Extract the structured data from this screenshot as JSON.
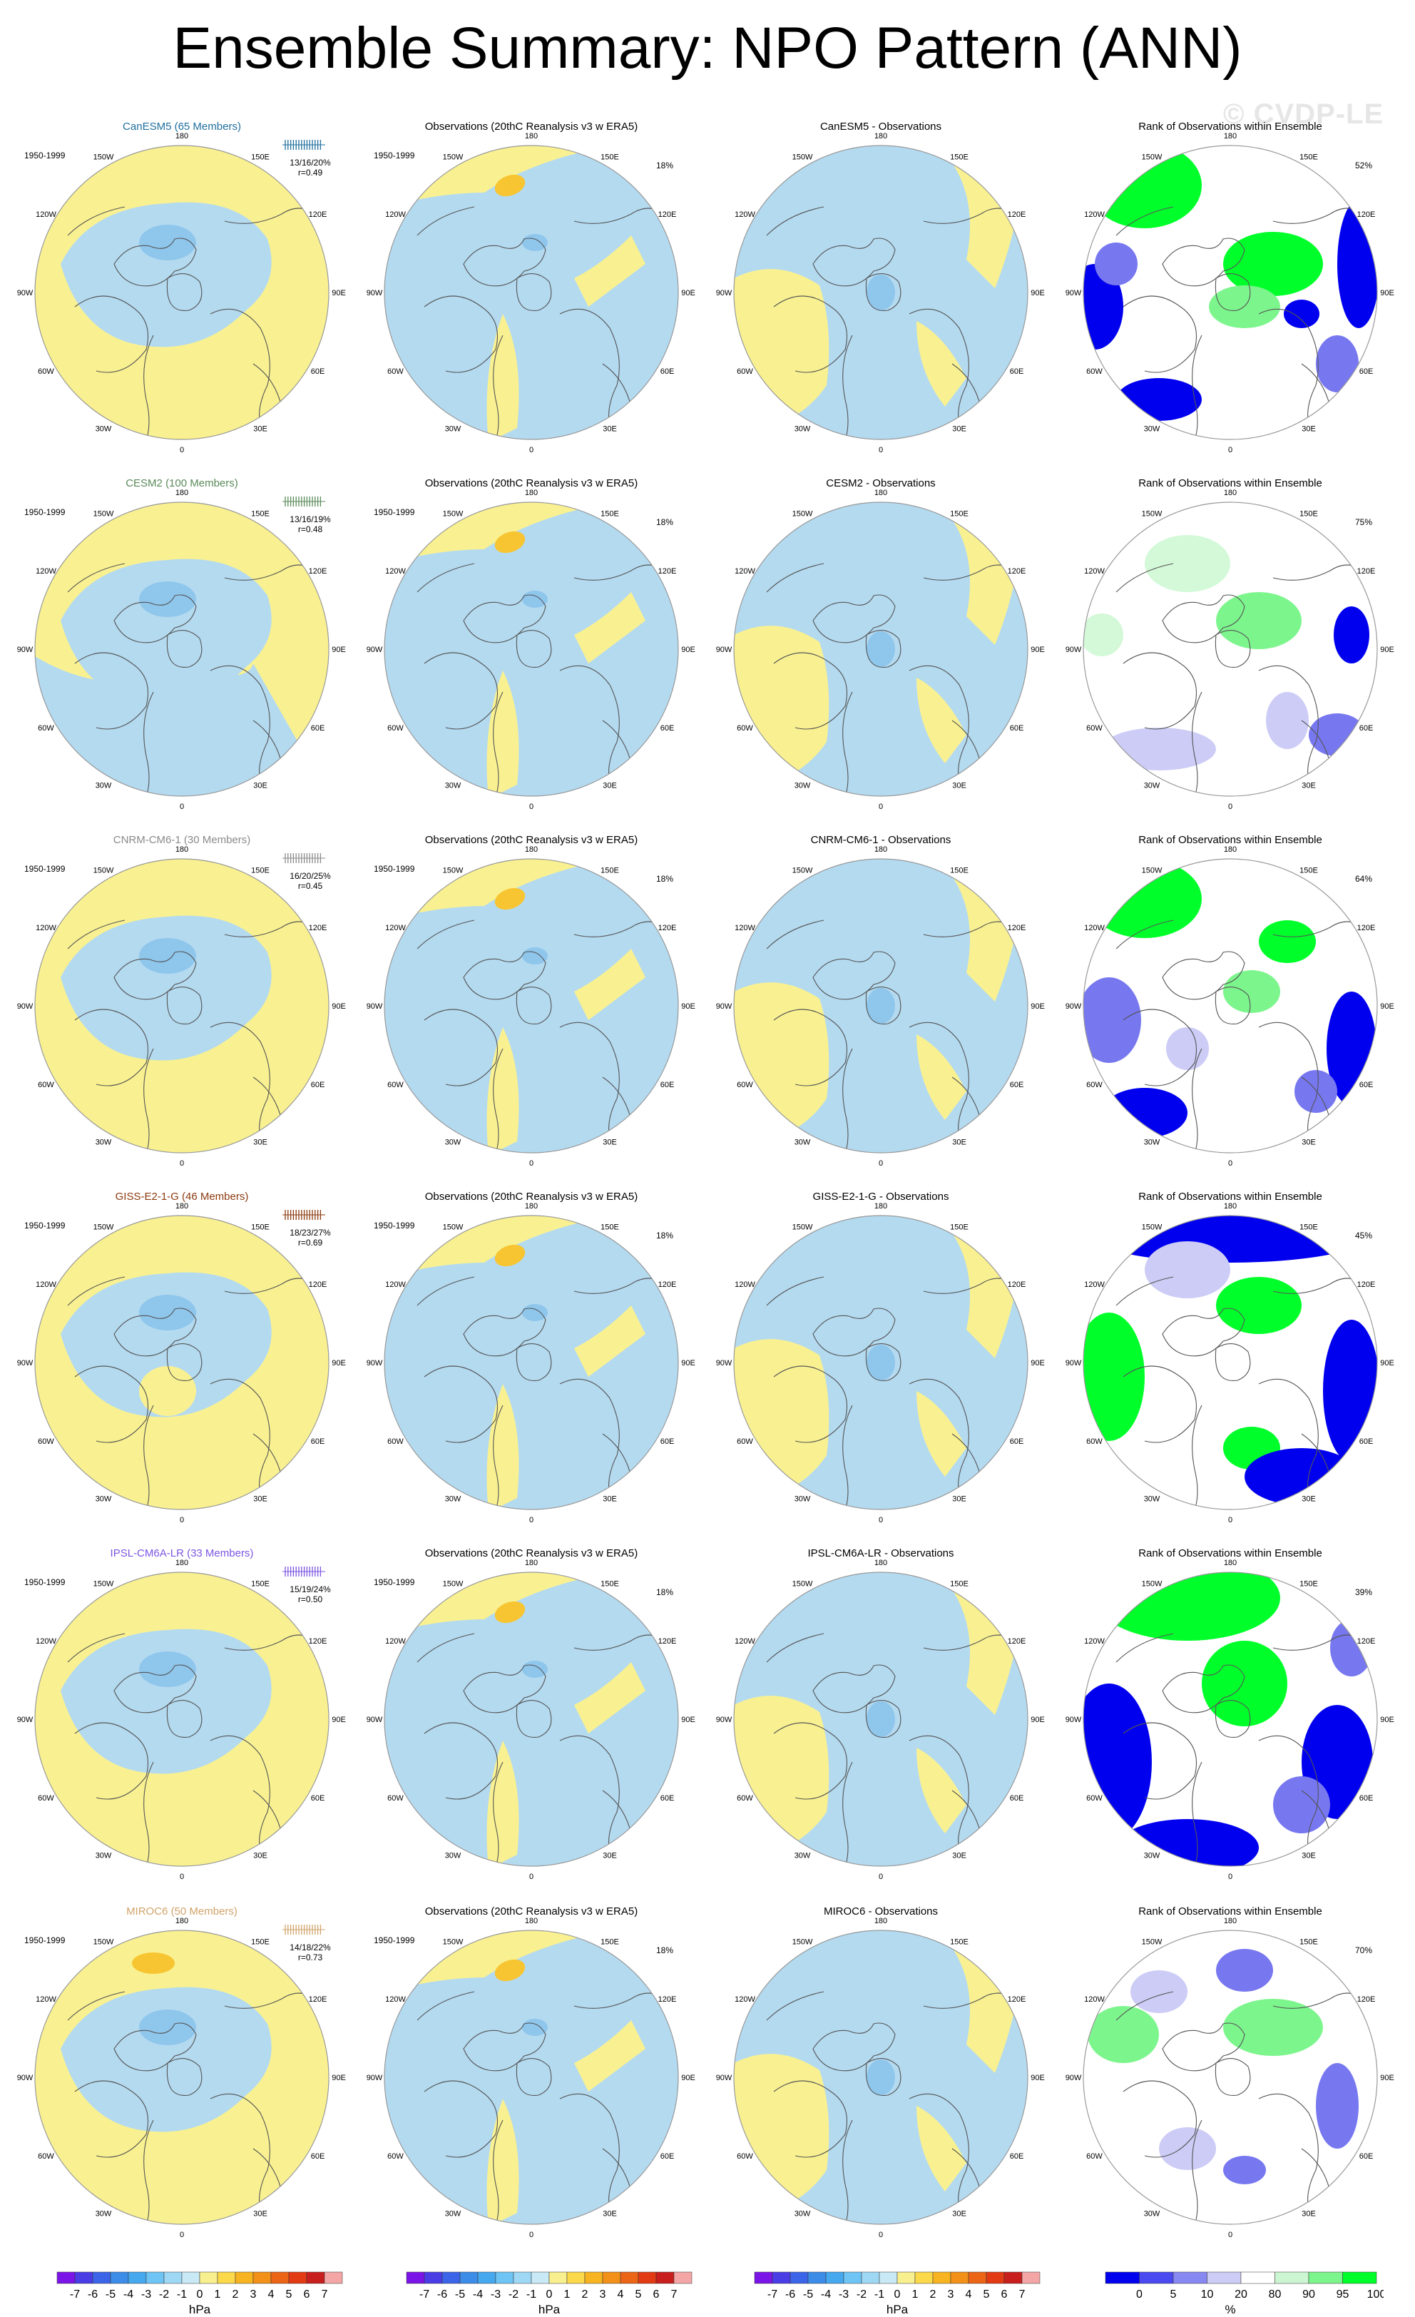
{
  "title": "Ensemble Summary: NPO Pattern (ANN)",
  "watermark": "© CVDP-LE",
  "period": "1950-1999",
  "lon_labels": [
    "180",
    "150E",
    "120E",
    "90E",
    "60E",
    "30E",
    "0",
    "30W",
    "60W",
    "90W",
    "120W",
    "150W"
  ],
  "obs_title": "Observations (20thC Reanalysis v3 w ERA5)",
  "obs_pct": "18%",
  "rank_title": "Rank of Observations within Ensemble",
  "colors": {
    "warm": "#f9f191",
    "cool": "#b4daf0",
    "cool2": "#8fc6ec",
    "orange": "#f7c531",
    "dblue": "#0000ee",
    "mblue": "#7777f0",
    "lblue": "#ccccf6",
    "green": "#00ff2a",
    "lgreen": "#7df58d",
    "pgreen": "#d3f9d8"
  },
  "rows": [
    {
      "model": "CanESM5 (65 Members)",
      "color": "#1f6f9e",
      "stat": "13/16/20%",
      "r": "r=0.49",
      "diff": "CanESM5 - Observations",
      "rank_pct": "52%"
    },
    {
      "model": "CESM2 (100 Members)",
      "color": "#5a8a5a",
      "stat": "13/16/19%",
      "r": "r=0.48",
      "diff": "CESM2 - Observations",
      "rank_pct": "75%"
    },
    {
      "model": "CNRM-CM6-1 (30 Members)",
      "color": "#8a8a8a",
      "stat": "16/20/25%",
      "r": "r=0.45",
      "diff": "CNRM-CM6-1 - Observations",
      "rank_pct": "64%"
    },
    {
      "model": "GISS-E2-1-G (46 Members)",
      "color": "#8b3a0f",
      "stat": "18/23/27%",
      "r": "r=0.69",
      "diff": "GISS-E2-1-G - Observations",
      "rank_pct": "45%"
    },
    {
      "model": "IPSL-CM6A-LR (33 Members)",
      "color": "#7b55e0",
      "stat": "15/19/24%",
      "r": "r=0.50",
      "diff": "IPSL-CM6A-LR - Observations",
      "rank_pct": "39%"
    },
    {
      "model": "MIROC6 (50 Members)",
      "color": "#d1a36a",
      "stat": "14/18/22%",
      "r": "r=0.73",
      "diff": "MIROC6 - Observations",
      "rank_pct": "70%"
    }
  ],
  "colorbar_hpa": {
    "labels": [
      "-7",
      "-6",
      "-5",
      "-4",
      "-3",
      "-2",
      "-1",
      "0",
      "1",
      "2",
      "3",
      "4",
      "5",
      "6",
      "7"
    ],
    "colors": [
      "#7b14e6",
      "#4b3de6",
      "#3c64e8",
      "#3c8ce8",
      "#46a8ee",
      "#6ec4f4",
      "#9fd8f5",
      "#c9e9f6",
      "#f8ef8f",
      "#fbd94a",
      "#f7b420",
      "#f29018",
      "#ec6416",
      "#e23a14",
      "#c81e1e",
      "#f4a6a6"
    ],
    "units": "hPa"
  },
  "colorbar_pct": {
    "labels": [
      "0",
      "5",
      "10",
      "20",
      "80",
      "90",
      "95",
      "100"
    ],
    "colors": [
      "#0000ee",
      "#4a4af0",
      "#8888f2",
      "#ccccf6",
      "#ffffff",
      "#ccf5d1",
      "#7df58d",
      "#00ff2a"
    ],
    "units": "%"
  }
}
